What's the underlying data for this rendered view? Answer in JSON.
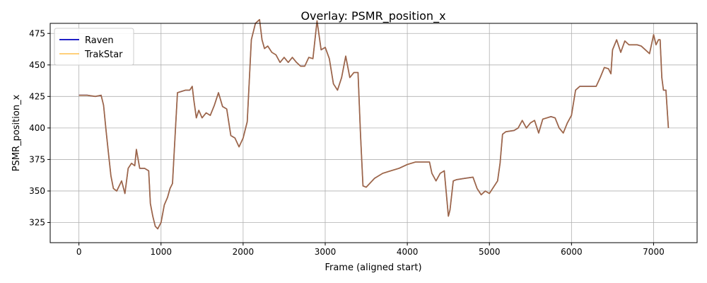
{
  "chart_data": {
    "type": "line",
    "title": "Overlay: PSMR_position_x",
    "xlabel": "Frame (aligned start)",
    "ylabel": "PSMR_position_x",
    "xlim": [
      -350,
      7530
    ],
    "ylim": [
      309,
      483
    ],
    "xticks": [
      0,
      1000,
      2000,
      3000,
      4000,
      5000,
      6000,
      7000
    ],
    "yticks": [
      325,
      350,
      375,
      400,
      425,
      450,
      475
    ],
    "grid": true,
    "legend_position": "top-left",
    "series": [
      {
        "name": "Raven",
        "color": "#0000bf",
        "x": [
          0,
          100,
          200,
          270,
          300,
          330,
          360,
          390,
          420,
          460,
          520,
          560,
          600,
          640,
          680,
          700,
          740,
          800,
          850,
          870,
          900,
          930,
          960,
          1000,
          1040,
          1080,
          1110,
          1140,
          1160,
          1200,
          1250,
          1300,
          1350,
          1380,
          1400,
          1430,
          1460,
          1500,
          1550,
          1600,
          1650,
          1700,
          1750,
          1800,
          1850,
          1900,
          1950,
          2000,
          2050,
          2100,
          2150,
          2200,
          2230,
          2260,
          2300,
          2350,
          2400,
          2450,
          2500,
          2550,
          2600,
          2650,
          2700,
          2750,
          2800,
          2850,
          2900,
          2950,
          3000,
          3050,
          3100,
          3150,
          3200,
          3250,
          3300,
          3350,
          3400,
          3430,
          3460,
          3500,
          3600,
          3700,
          3800,
          3900,
          4000,
          4100,
          4200,
          4270,
          4300,
          4350,
          4400,
          4450,
          4500,
          4520,
          4560,
          4600,
          4700,
          4800,
          4850,
          4900,
          4950,
          5000,
          5050,
          5100,
          5130,
          5160,
          5200,
          5300,
          5350,
          5400,
          5450,
          5500,
          5550,
          5600,
          5650,
          5700,
          5750,
          5800,
          5850,
          5900,
          5950,
          6000,
          6050,
          6100,
          6200,
          6300,
          6350,
          6400,
          6450,
          6480,
          6500,
          6550,
          6600,
          6650,
          6700,
          6750,
          6800,
          6850,
          6900,
          6950,
          7000,
          7030,
          7060,
          7080,
          7100,
          7120,
          7150,
          7180
        ],
        "y": [
          426,
          426,
          425,
          426,
          418,
          398,
          380,
          362,
          352,
          350,
          358,
          348,
          368,
          372,
          370,
          383,
          368,
          368,
          366,
          340,
          330,
          322,
          320,
          325,
          339,
          345,
          352,
          356,
          380,
          428,
          429,
          430,
          430,
          433,
          422,
          408,
          414,
          408,
          412,
          410,
          418,
          428,
          417,
          415,
          394,
          392,
          385,
          392,
          405,
          470,
          483,
          486,
          470,
          463,
          465,
          460,
          458,
          452,
          456,
          452,
          456,
          452,
          449,
          449,
          456,
          455,
          485,
          462,
          464,
          455,
          435,
          430,
          440,
          457,
          440,
          444,
          444,
          395,
          354,
          353,
          360,
          364,
          366,
          368,
          371,
          373,
          373,
          373,
          364,
          358,
          364,
          366,
          330,
          335,
          358,
          359,
          360,
          361,
          352,
          347,
          350,
          348,
          353,
          358,
          372,
          395,
          397,
          398,
          400,
          406,
          400,
          404,
          406,
          396,
          407,
          408,
          409,
          408,
          400,
          396,
          404,
          410,
          430,
          433,
          433,
          433,
          440,
          448,
          447,
          443,
          462,
          470,
          460,
          469,
          466,
          466,
          466,
          465,
          462,
          459,
          474,
          466,
          470,
          470,
          440,
          430,
          430,
          400
        ]
      },
      {
        "name": "TrakStar",
        "color": "#ffa500",
        "x": [
          0,
          100,
          200,
          270,
          300,
          330,
          360,
          390,
          420,
          460,
          520,
          560,
          600,
          640,
          680,
          700,
          740,
          800,
          850,
          870,
          900,
          930,
          960,
          1000,
          1040,
          1080,
          1110,
          1140,
          1160,
          1200,
          1250,
          1300,
          1350,
          1380,
          1400,
          1430,
          1460,
          1500,
          1550,
          1600,
          1650,
          1700,
          1750,
          1800,
          1850,
          1900,
          1950,
          2000,
          2050,
          2100,
          2150,
          2200,
          2230,
          2260,
          2300,
          2350,
          2400,
          2450,
          2500,
          2550,
          2600,
          2650,
          2700,
          2750,
          2800,
          2850,
          2900,
          2950,
          3000,
          3050,
          3100,
          3150,
          3200,
          3250,
          3300,
          3350,
          3400,
          3430,
          3460,
          3500,
          3600,
          3700,
          3800,
          3900,
          4000,
          4100,
          4200,
          4270,
          4300,
          4350,
          4400,
          4450,
          4500,
          4520,
          4560,
          4600,
          4700,
          4800,
          4850,
          4900,
          4950,
          5000,
          5050,
          5100,
          5130,
          5160,
          5200,
          5300,
          5350,
          5400,
          5450,
          5500,
          5550,
          5600,
          5650,
          5700,
          5750,
          5800,
          5850,
          5900,
          5950,
          6000,
          6050,
          6100,
          6200,
          6300,
          6350,
          6400,
          6450,
          6480,
          6500,
          6550,
          6600,
          6650,
          6700,
          6750,
          6800,
          6850,
          6900,
          6950,
          7000,
          7030,
          7060,
          7080,
          7100,
          7120,
          7150,
          7180
        ],
        "y": [
          426,
          426,
          425,
          426,
          418,
          398,
          380,
          362,
          352,
          350,
          358,
          348,
          368,
          372,
          370,
          383,
          368,
          368,
          366,
          340,
          330,
          322,
          320,
          325,
          339,
          345,
          352,
          356,
          380,
          428,
          429,
          430,
          430,
          433,
          422,
          408,
          414,
          408,
          412,
          410,
          418,
          428,
          417,
          415,
          394,
          392,
          385,
          392,
          405,
          470,
          483,
          486,
          470,
          463,
          465,
          460,
          458,
          452,
          456,
          452,
          456,
          452,
          449,
          449,
          456,
          455,
          485,
          462,
          464,
          455,
          435,
          430,
          440,
          457,
          440,
          444,
          444,
          395,
          354,
          353,
          360,
          364,
          366,
          368,
          371,
          373,
          373,
          373,
          364,
          358,
          364,
          366,
          330,
          335,
          358,
          359,
          360,
          361,
          352,
          347,
          350,
          348,
          353,
          358,
          372,
          395,
          397,
          398,
          400,
          406,
          400,
          404,
          406,
          396,
          407,
          408,
          409,
          408,
          400,
          396,
          404,
          410,
          430,
          433,
          433,
          433,
          440,
          448,
          447,
          443,
          462,
          470,
          460,
          469,
          466,
          466,
          466,
          465,
          462,
          459,
          474,
          466,
          470,
          470,
          440,
          430,
          430,
          400
        ]
      }
    ]
  }
}
